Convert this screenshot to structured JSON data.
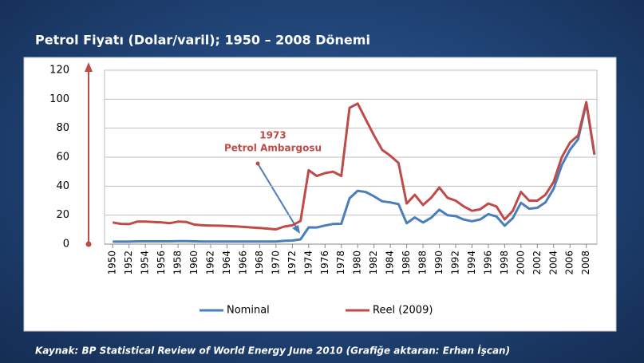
{
  "chart_data": {
    "type": "line",
    "title": "Petrol Fiyatı (Dolar/varil); 1950 – 2008 Dönemi",
    "annotation": [
      "1973",
      "Petrol Ambargosu"
    ],
    "source": "Kaynak: BP Statistical Review of World Energy June 2010 (Grafiğe aktaran: Erhan İşcan)",
    "x": [
      1950,
      1951,
      1952,
      1953,
      1954,
      1955,
      1956,
      1957,
      1958,
      1959,
      1960,
      1961,
      1962,
      1963,
      1964,
      1965,
      1966,
      1967,
      1968,
      1969,
      1970,
      1971,
      1972,
      1973,
      1974,
      1975,
      1976,
      1977,
      1978,
      1979,
      1980,
      1981,
      1982,
      1983,
      1984,
      1985,
      1986,
      1987,
      1988,
      1989,
      1990,
      1991,
      1992,
      1993,
      1994,
      1995,
      1996,
      1997,
      1998,
      1999,
      2000,
      2001,
      2002,
      2003,
      2004,
      2005,
      2006,
      2007,
      2008,
      2009
    ],
    "series": [
      {
        "name": "Nominal",
        "color": "#4a7ebb",
        "values": [
          1.71,
          1.71,
          1.71,
          1.93,
          1.93,
          1.93,
          1.93,
          1.9,
          2.08,
          2.08,
          1.9,
          1.8,
          1.8,
          1.8,
          1.8,
          1.8,
          1.8,
          1.8,
          1.8,
          1.8,
          1.8,
          2.24,
          2.48,
          3.29,
          11.58,
          11.53,
          12.8,
          13.92,
          14.02,
          31.61,
          36.83,
          35.93,
          32.97,
          29.55,
          28.78,
          27.56,
          14.43,
          18.44,
          14.92,
          18.23,
          23.73,
          20,
          19.32,
          16.97,
          15.82,
          17.02,
          20.67,
          19.09,
          12.72,
          17.97,
          28.5,
          24.44,
          25.02,
          28.83,
          38.27,
          54.52,
          65.14,
          72.39,
          97.26,
          61.67
        ]
      },
      {
        "name": "Reel (2009)",
        "color": "#be4b48",
        "values": [
          15,
          14,
          13.8,
          15.5,
          15.5,
          15.3,
          15,
          14.5,
          15.5,
          15.3,
          13.5,
          13,
          12.8,
          12.7,
          12.5,
          12.2,
          11.9,
          11.5,
          11.2,
          10.7,
          10.2,
          12.1,
          13,
          16,
          51,
          47,
          49,
          50,
          47,
          94,
          97,
          86,
          75,
          65,
          61,
          56,
          28,
          34,
          27,
          32,
          39,
          32,
          30,
          26,
          23,
          24,
          28,
          26,
          17,
          23,
          36,
          30,
          30,
          34,
          43,
          60,
          70,
          75,
          98,
          62
        ]
      }
    ],
    "xlim": [
      1949,
      2009.3
    ],
    "xticks": [
      1950,
      1952,
      1954,
      1956,
      1958,
      1960,
      1962,
      1964,
      1966,
      1968,
      1970,
      1972,
      1974,
      1976,
      1978,
      1980,
      1982,
      1984,
      1986,
      1988,
      1990,
      1992,
      1994,
      1996,
      1998,
      2000,
      2002,
      2004,
      2006,
      2008
    ],
    "ylim": [
      0,
      120
    ],
    "yticks": [
      0,
      20,
      40,
      60,
      80,
      100,
      120
    ],
    "grid": true
  }
}
